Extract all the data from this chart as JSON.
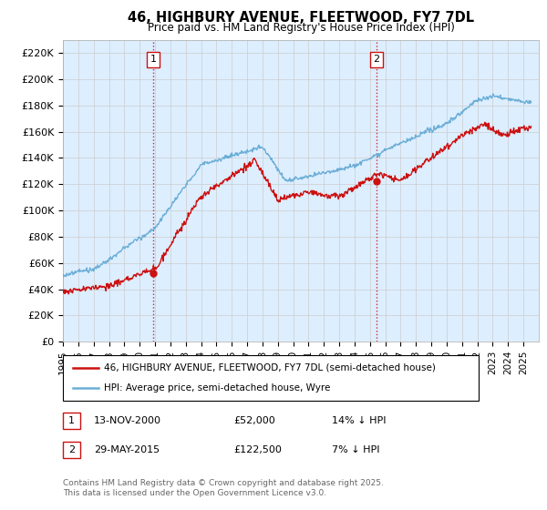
{
  "title": "46, HIGHBURY AVENUE, FLEETWOOD, FY7 7DL",
  "subtitle": "Price paid vs. HM Land Registry's House Price Index (HPI)",
  "ylabel_ticks": [
    "£0",
    "£20K",
    "£40K",
    "£60K",
    "£80K",
    "£100K",
    "£120K",
    "£140K",
    "£160K",
    "£180K",
    "£200K",
    "£220K"
  ],
  "ytick_vals": [
    0,
    20000,
    40000,
    60000,
    80000,
    100000,
    120000,
    140000,
    160000,
    180000,
    200000,
    220000
  ],
  "ylim": [
    0,
    230000
  ],
  "xlim_start": 1995.0,
  "xlim_end": 2026.0,
  "hpi_color": "#6baed6",
  "price_color": "#cc1111",
  "plot_bg_color": "#ddeeff",
  "vline_color": "#cc1111",
  "marker1_x": 2000.87,
  "marker1_y": 52000,
  "marker1_label": "1",
  "marker2_x": 2015.42,
  "marker2_y": 122500,
  "marker2_label": "2",
  "legend_line1": "46, HIGHBURY AVENUE, FLEETWOOD, FY7 7DL (semi-detached house)",
  "legend_line2": "HPI: Average price, semi-detached house, Wyre",
  "annotation1_date": "13-NOV-2000",
  "annotation1_price": "£52,000",
  "annotation1_note": "14% ↓ HPI",
  "annotation2_date": "29-MAY-2015",
  "annotation2_price": "£122,500",
  "annotation2_note": "7% ↓ HPI",
  "copyright": "Contains HM Land Registry data © Crown copyright and database right 2025.\nThis data is licensed under the Open Government Licence v3.0.",
  "background_color": "#ffffff",
  "grid_color": "#cccccc"
}
